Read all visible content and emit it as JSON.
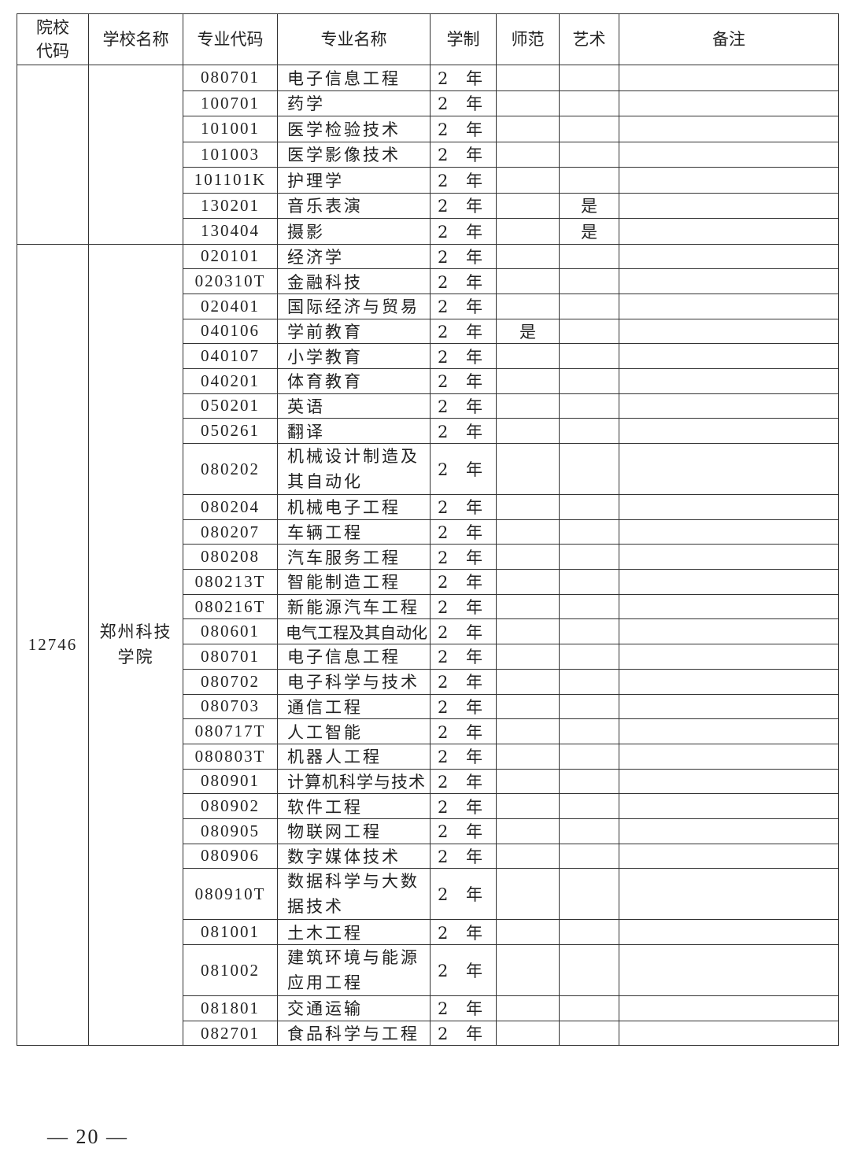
{
  "headers": {
    "code": "院校代码",
    "school": "学校名称",
    "major_code": "专业代码",
    "major_name": "专业名称",
    "years": "学制",
    "normal": "师范",
    "art": "艺术",
    "note": "备注"
  },
  "groups": [
    {
      "code": "",
      "school": "",
      "rows": [
        {
          "code": "080701",
          "name": "电子信息工程",
          "years": "2 年",
          "normal": "",
          "art": ""
        },
        {
          "code": "100701",
          "name": "药学",
          "years": "2 年",
          "normal": "",
          "art": ""
        },
        {
          "code": "101001",
          "name": "医学检验技术",
          "years": "2 年",
          "normal": "",
          "art": ""
        },
        {
          "code": "101003",
          "name": "医学影像技术",
          "years": "2 年",
          "normal": "",
          "art": ""
        },
        {
          "code": "101101K",
          "name": "护理学",
          "years": "2 年",
          "normal": "",
          "art": ""
        },
        {
          "code": "130201",
          "name": "音乐表演",
          "years": "2 年",
          "normal": "",
          "art": "是"
        },
        {
          "code": "130404",
          "name": "摄影",
          "years": "2 年",
          "normal": "",
          "art": "是"
        }
      ]
    },
    {
      "code": "12746",
      "school": "郑州科技学院",
      "rows": [
        {
          "code": "020101",
          "name": "经济学",
          "years": "2 年",
          "normal": "",
          "art": ""
        },
        {
          "code": "020310T",
          "name": "金融科技",
          "years": "2 年",
          "normal": "",
          "art": ""
        },
        {
          "code": "020401",
          "name": "国际经济与贸易",
          "years": "2 年",
          "normal": "",
          "art": ""
        },
        {
          "code": "040106",
          "name": "学前教育",
          "years": "2 年",
          "normal": "是",
          "art": ""
        },
        {
          "code": "040107",
          "name": "小学教育",
          "years": "2 年",
          "normal": "",
          "art": ""
        },
        {
          "code": "040201",
          "name": "体育教育",
          "years": "2 年",
          "normal": "",
          "art": ""
        },
        {
          "code": "050201",
          "name": "英语",
          "years": "2 年",
          "normal": "",
          "art": ""
        },
        {
          "code": "050261",
          "name": "翻译",
          "years": "2 年",
          "normal": "",
          "art": ""
        },
        {
          "code": "080202",
          "name": "机械设计制造及其自动化",
          "years": "2 年",
          "normal": "",
          "art": ""
        },
        {
          "code": "080204",
          "name": "机械电子工程",
          "years": "2 年",
          "normal": "",
          "art": ""
        },
        {
          "code": "080207",
          "name": "车辆工程",
          "years": "2 年",
          "normal": "",
          "art": ""
        },
        {
          "code": "080208",
          "name": "汽车服务工程",
          "years": "2 年",
          "normal": "",
          "art": ""
        },
        {
          "code": "080213T",
          "name": "智能制造工程",
          "years": "2 年",
          "normal": "",
          "art": ""
        },
        {
          "code": "080216T",
          "name": "新能源汽车工程",
          "years": "2 年",
          "normal": "",
          "art": ""
        },
        {
          "code": "080601",
          "name": "电气工程及其自动化",
          "years": "2 年",
          "normal": "",
          "art": ""
        },
        {
          "code": "080701",
          "name": "电子信息工程",
          "years": "2 年",
          "normal": "",
          "art": ""
        },
        {
          "code": "080702",
          "name": "电子科学与技术",
          "years": "2 年",
          "normal": "",
          "art": ""
        },
        {
          "code": "080703",
          "name": "通信工程",
          "years": "2 年",
          "normal": "",
          "art": ""
        },
        {
          "code": "080717T",
          "name": "人工智能",
          "years": "2 年",
          "normal": "",
          "art": ""
        },
        {
          "code": "080803T",
          "name": "机器人工程",
          "years": "2 年",
          "normal": "",
          "art": ""
        },
        {
          "code": "080901",
          "name": "计算机科学与技术",
          "years": "2 年",
          "normal": "",
          "art": ""
        },
        {
          "code": "080902",
          "name": "软件工程",
          "years": "2 年",
          "normal": "",
          "art": ""
        },
        {
          "code": "080905",
          "name": "物联网工程",
          "years": "2 年",
          "normal": "",
          "art": ""
        },
        {
          "code": "080906",
          "name": "数字媒体技术",
          "years": "2 年",
          "normal": "",
          "art": ""
        },
        {
          "code": "080910T",
          "name": "数据科学与大数据技术",
          "years": "2 年",
          "normal": "",
          "art": ""
        },
        {
          "code": "081001",
          "name": "土木工程",
          "years": "2 年",
          "normal": "",
          "art": ""
        },
        {
          "code": "081002",
          "name": "建筑环境与能源应用工程",
          "years": "2 年",
          "normal": "",
          "art": ""
        },
        {
          "code": "081801",
          "name": "交通运输",
          "years": "2 年",
          "normal": "",
          "art": ""
        },
        {
          "code": "082701",
          "name": "食品科学与工程",
          "years": "2 年",
          "normal": "",
          "art": ""
        }
      ]
    }
  ],
  "footer": {
    "page": "— 20 —"
  }
}
